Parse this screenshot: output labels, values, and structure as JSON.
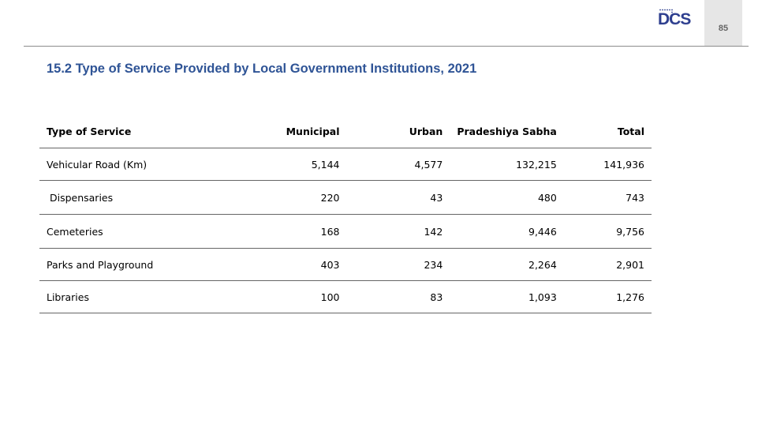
{
  "header": {
    "logo_text": "DCS",
    "page_number": "85"
  },
  "title": "15.2 Type of Service Provided by Local Government Institutions, 2021",
  "table": {
    "headers": [
      "Type of Service",
      "Municipal",
      "Urban",
      "Pradeshiya  Sabha",
      "Total"
    ],
    "rows": [
      [
        "Vehicular Road (Km)",
        "5,144",
        "4,577",
        "132,215",
        "141,936"
      ],
      [
        " Dispensaries",
        "220",
        "43",
        "480",
        "743"
      ],
      [
        "Cemeteries",
        "168",
        "142",
        "9,446",
        "9,756"
      ],
      [
        "Parks and Playground",
        "403",
        "234",
        "2,264",
        "2,901"
      ],
      [
        "Libraries",
        "100",
        "83",
        "1,093",
        "1,276"
      ]
    ]
  },
  "colors": {
    "title": "#2f5496",
    "logo": "#2e3f8f",
    "page_box": "#e6e6e6"
  }
}
